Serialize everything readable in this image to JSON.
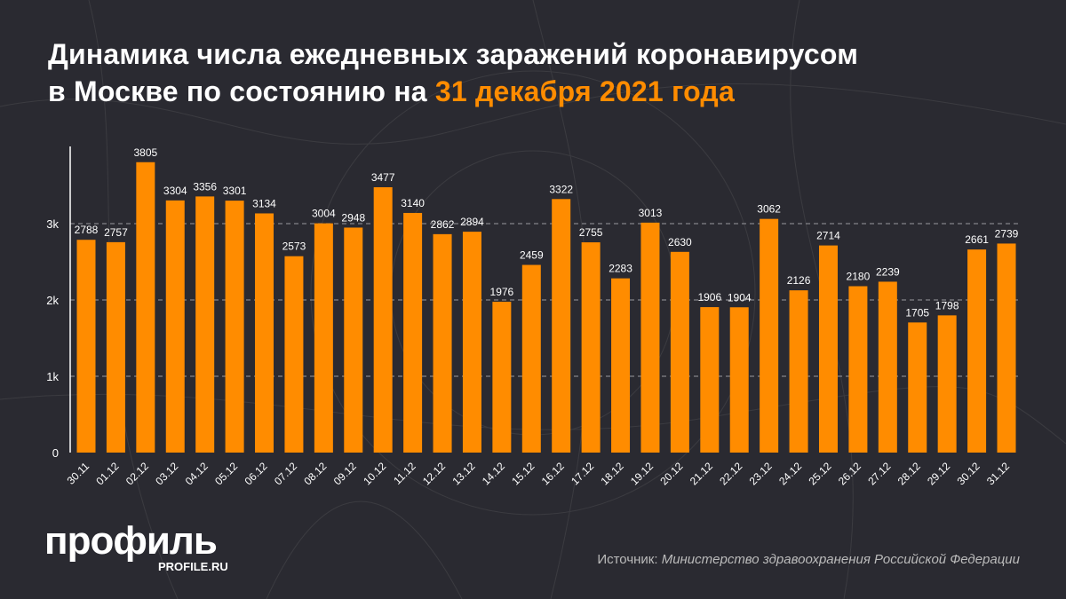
{
  "title": {
    "line1": "Динамика числа ежедневных заражений коронавирусом",
    "line2_prefix": "в Москве по состоянию на ",
    "line2_highlight": "31 декабря 2021 года"
  },
  "colors": {
    "background": "#2a2a31",
    "bar": "#ff8c00",
    "highlight": "#ff8c00",
    "text": "#ffffff"
  },
  "chart_data": {
    "type": "bar",
    "title": "Динамика числа ежедневных заражений коронавирусом в Москве по состоянию на 31 декабря 2021 года",
    "categories": [
      "30.11",
      "01.12",
      "02.12",
      "03.12",
      "04.12",
      "05.12",
      "06.12",
      "07.12",
      "08.12",
      "09.12",
      "10.12",
      "11.12",
      "12.12",
      "13.12",
      "14.12",
      "15.12",
      "16.12",
      "17.12",
      "18.12",
      "19.12",
      "20.12",
      "21.12",
      "22.12",
      "23.12",
      "24.12",
      "25.12",
      "26.12",
      "27.12",
      "28.12",
      "29.12",
      "30.12",
      "31.12"
    ],
    "values": [
      2788,
      2757,
      3805,
      3304,
      3356,
      3301,
      3134,
      2573,
      3004,
      2948,
      3477,
      3140,
      2862,
      2894,
      1976,
      2459,
      3322,
      2755,
      2283,
      3013,
      2630,
      1906,
      1904,
      3062,
      2126,
      2714,
      2180,
      2239,
      1705,
      1798,
      2661,
      2739
    ],
    "yticks": [
      {
        "value": 0,
        "label": "0"
      },
      {
        "value": 1000,
        "label": "1k"
      },
      {
        "value": 2000,
        "label": "2k"
      },
      {
        "value": 3000,
        "label": "3k"
      }
    ],
    "ylim": [
      0,
      4000
    ],
    "grid": true,
    "xlabel": "",
    "ylabel": ""
  },
  "footer": {
    "logo": "профиль",
    "logo_sub": "PROFILE.RU",
    "source_label": "Источник: ",
    "source_value": "Министерство здравоохранения Российской Федерации"
  }
}
